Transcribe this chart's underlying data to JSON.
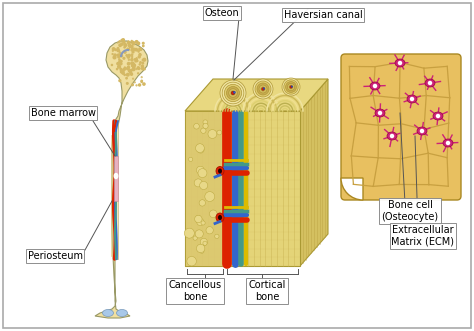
{
  "background_color": "#ffffff",
  "border_color": "#aaaaaa",
  "labels": {
    "osteon": "Osteon",
    "haversian_canal": "Haversian canal",
    "bone_marrow": "Bone marrow",
    "periosteum": "Periosteum",
    "cancellous_bone": "Cancellous\nbone",
    "cortical_bone": "Cortical\nbone",
    "bone_cell": "Bone cell\n(Osteocyte)",
    "ecm": "Extracellular\nMatrix (ECM)"
  },
  "colors": {
    "bone_main": "#f0dfa0",
    "bone_mid": "#dcc878",
    "bone_dark": "#c8aa50",
    "bone_spongy": "#d4b864",
    "marrow_cavity": "#f0e8c0",
    "blood_red": "#dd2200",
    "blood_blue": "#3366cc",
    "blood_teal": "#449988",
    "blood_yellow": "#ddbb00",
    "cartilage": "#a8c8e8",
    "pink_marrow": "#e8b0c0",
    "ecm_bg": "#e8c060",
    "ecm_cell": "#cc2277",
    "ecm_lines": "#c8a040",
    "white": "#ffffff",
    "label_edge": "#888888"
  },
  "figsize": [
    4.74,
    3.31
  ],
  "dpi": 100
}
